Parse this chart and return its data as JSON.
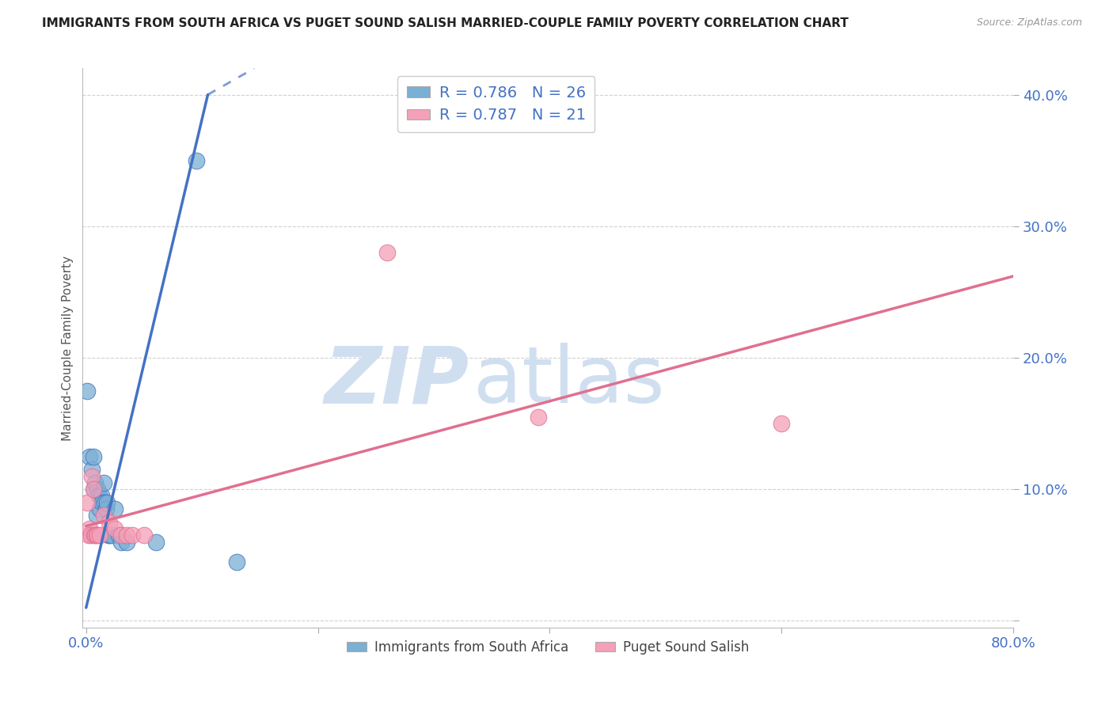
{
  "title": "IMMIGRANTS FROM SOUTH AFRICA VS PUGET SOUND SALISH MARRIED-COUPLE FAMILY POVERTY CORRELATION CHART",
  "source": "Source: ZipAtlas.com",
  "ylabel": "Married-Couple Family Poverty",
  "x_min": 0.0,
  "x_max": 0.8,
  "y_min": -0.005,
  "y_max": 0.42,
  "blue_scatter": [
    [
      0.001,
      0.175
    ],
    [
      0.003,
      0.125
    ],
    [
      0.005,
      0.115
    ],
    [
      0.006,
      0.125
    ],
    [
      0.007,
      0.1
    ],
    [
      0.008,
      0.105
    ],
    [
      0.009,
      0.08
    ],
    [
      0.01,
      0.1
    ],
    [
      0.011,
      0.095
    ],
    [
      0.012,
      0.085
    ],
    [
      0.013,
      0.095
    ],
    [
      0.014,
      0.09
    ],
    [
      0.015,
      0.105
    ],
    [
      0.016,
      0.09
    ],
    [
      0.017,
      0.085
    ],
    [
      0.018,
      0.09
    ],
    [
      0.019,
      0.065
    ],
    [
      0.02,
      0.065
    ],
    [
      0.022,
      0.065
    ],
    [
      0.025,
      0.085
    ],
    [
      0.028,
      0.065
    ],
    [
      0.03,
      0.06
    ],
    [
      0.035,
      0.06
    ],
    [
      0.06,
      0.06
    ],
    [
      0.095,
      0.35
    ],
    [
      0.13,
      0.045
    ]
  ],
  "pink_scatter": [
    [
      0.001,
      0.09
    ],
    [
      0.002,
      0.065
    ],
    [
      0.003,
      0.07
    ],
    [
      0.004,
      0.065
    ],
    [
      0.005,
      0.11
    ],
    [
      0.006,
      0.1
    ],
    [
      0.007,
      0.065
    ],
    [
      0.008,
      0.065
    ],
    [
      0.009,
      0.065
    ],
    [
      0.01,
      0.065
    ],
    [
      0.012,
      0.065
    ],
    [
      0.015,
      0.08
    ],
    [
      0.02,
      0.075
    ],
    [
      0.025,
      0.07
    ],
    [
      0.03,
      0.065
    ],
    [
      0.035,
      0.065
    ],
    [
      0.04,
      0.065
    ],
    [
      0.05,
      0.065
    ],
    [
      0.26,
      0.28
    ],
    [
      0.39,
      0.155
    ],
    [
      0.6,
      0.15
    ]
  ],
  "blue_line": {
    "x0": 0.0,
    "y0": 0.01,
    "x1": 0.105,
    "y1": 0.4
  },
  "blue_line_dashed": {
    "x0": 0.105,
    "y0": 0.4,
    "x1": 0.145,
    "y1": 0.42
  },
  "pink_line": {
    "x0": 0.0,
    "y0": 0.072,
    "x1": 0.8,
    "y1": 0.262
  },
  "blue_line_color": "#4472c4",
  "pink_line_color": "#e07090",
  "blue_scatter_color": "#7bafd4",
  "pink_scatter_color": "#f4a0b8",
  "watermark_zip": "ZIP",
  "watermark_atlas": "atlas",
  "watermark_color": "#d0dff0",
  "background_color": "#ffffff",
  "grid_color": "#cccccc",
  "legend1_blue_label_r": "R = 0.786",
  "legend1_blue_label_n": "N = 26",
  "legend1_pink_label_r": "R = 0.787",
  "legend1_pink_label_n": "N = 21",
  "legend2_blue_label": "Immigrants from South Africa",
  "legend2_pink_label": "Puget Sound Salish"
}
